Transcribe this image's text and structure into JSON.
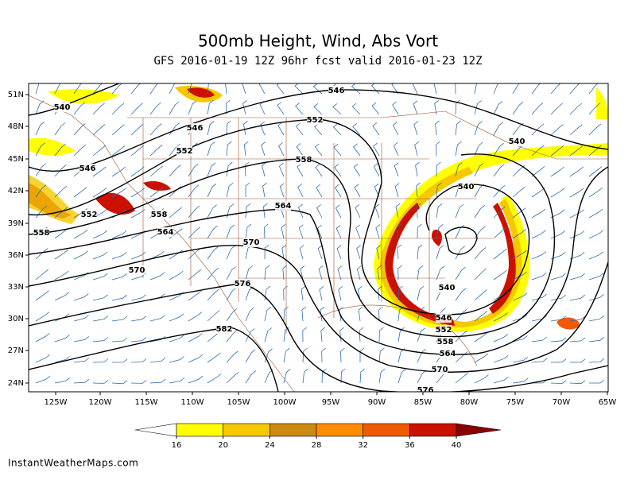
{
  "header": {
    "title": "500mb Height, Wind, Abs Vort",
    "subtitle": "GFS 2016-01-19 12Z 96hr fcst valid 2016-01-23 12Z"
  },
  "map": {
    "lat_labels": [
      "51N",
      "48N",
      "45N",
      "42N",
      "39N",
      "36N",
      "33N",
      "30N",
      "27N",
      "24N"
    ],
    "lon_labels": [
      "125W",
      "120W",
      "115W",
      "110W",
      "105W",
      "100W",
      "95W",
      "90W",
      "85W",
      "80W",
      "75W",
      "70W",
      "65W"
    ],
    "contour_labels": [
      540,
      546,
      552,
      558,
      546,
      552,
      558,
      564,
      570,
      546,
      552,
      558,
      564,
      570,
      576,
      582,
      540,
      540,
      540,
      546,
      552,
      558,
      564,
      570,
      576
    ]
  },
  "colorbar": {
    "ticks": [
      16,
      20,
      24,
      28,
      32,
      36,
      40
    ],
    "colors": [
      "#ffff00",
      "#f5c800",
      "#cc8a10",
      "#ff8c00",
      "#f05a00",
      "#cc1000",
      "#8b0000"
    ]
  },
  "footer": {
    "credit": "InstantWeatherMaps.com"
  }
}
